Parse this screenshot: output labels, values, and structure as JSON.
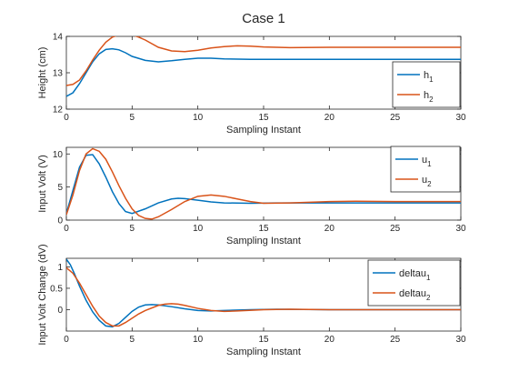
{
  "figure_title": "Case 1",
  "chart_data": [
    {
      "type": "line",
      "title": "",
      "xlabel": "Sampling Instant",
      "ylabel": "Height (cm)",
      "xlim": [
        0,
        30
      ],
      "ylim": [
        12,
        14
      ],
      "xticks": [
        0,
        5,
        10,
        15,
        20,
        25,
        30
      ],
      "yticks": [
        12,
        13,
        14
      ],
      "grid": false,
      "legend": "right",
      "series": [
        {
          "name_base": "h",
          "name_sub": "1",
          "color": "#0072BD",
          "x": [
            0,
            0.5,
            1,
            1.5,
            2,
            2.5,
            3,
            3.5,
            4,
            4.5,
            5,
            6,
            7,
            8,
            9,
            10,
            11,
            12,
            14,
            16,
            20,
            25,
            30
          ],
          "y": [
            12.35,
            12.45,
            12.7,
            13.0,
            13.3,
            13.52,
            13.64,
            13.66,
            13.63,
            13.55,
            13.45,
            13.34,
            13.3,
            13.33,
            13.37,
            13.4,
            13.4,
            13.38,
            13.37,
            13.37,
            13.37,
            13.37,
            13.37
          ]
        },
        {
          "name_base": "h",
          "name_sub": "2",
          "color": "#D95319",
          "x": [
            0,
            0.5,
            1,
            1.5,
            2,
            2.5,
            3,
            3.5,
            4,
            4.5,
            5,
            5.5,
            6,
            7,
            8,
            9,
            10,
            11,
            12,
            13,
            14,
            15,
            17,
            20,
            25,
            30
          ],
          "y": [
            12.65,
            12.68,
            12.8,
            13.05,
            13.35,
            13.62,
            13.84,
            13.98,
            14.04,
            14.06,
            14.04,
            13.98,
            13.9,
            13.7,
            13.6,
            13.58,
            13.62,
            13.68,
            13.72,
            13.74,
            13.73,
            13.71,
            13.69,
            13.7,
            13.7,
            13.7
          ]
        }
      ]
    },
    {
      "type": "line",
      "title": "",
      "xlabel": "Sampling Instant",
      "ylabel": "Input Volt (V)",
      "xlim": [
        0,
        30
      ],
      "ylim": [
        0,
        11
      ],
      "xticks": [
        0,
        5,
        10,
        15,
        20,
        25,
        30
      ],
      "yticks": [
        0,
        5,
        10
      ],
      "grid": false,
      "legend": "top-right",
      "series": [
        {
          "name_base": "u",
          "name_sub": "1",
          "color": "#0072BD",
          "x": [
            0,
            0.5,
            1,
            1.5,
            2,
            2.5,
            3,
            3.5,
            4,
            4.5,
            5,
            6,
            7,
            8,
            8.5,
            9,
            10,
            11,
            12,
            14,
            16,
            20,
            25,
            30
          ],
          "y": [
            1.0,
            4.5,
            8.0,
            9.8,
            9.9,
            8.5,
            6.5,
            4.3,
            2.5,
            1.3,
            1.0,
            1.7,
            2.6,
            3.2,
            3.3,
            3.25,
            3.0,
            2.75,
            2.6,
            2.55,
            2.6,
            2.6,
            2.6,
            2.6
          ]
        },
        {
          "name_base": "u",
          "name_sub": "2",
          "color": "#D95319",
          "x": [
            0,
            0.5,
            1,
            1.5,
            2,
            2.5,
            3,
            3.5,
            4,
            4.5,
            5,
            5.5,
            6,
            6.5,
            7,
            8,
            9,
            10,
            11,
            12,
            13,
            14,
            15,
            17,
            20,
            22,
            25,
            30
          ],
          "y": [
            0.8,
            3.8,
            7.5,
            10.0,
            10.8,
            10.4,
            9.2,
            7.3,
            5.2,
            3.3,
            1.7,
            0.7,
            0.25,
            0.15,
            0.5,
            1.6,
            2.8,
            3.6,
            3.8,
            3.6,
            3.2,
            2.8,
            2.55,
            2.6,
            2.8,
            2.85,
            2.8,
            2.8
          ]
        }
      ]
    },
    {
      "type": "line",
      "title": "",
      "xlabel": "Sampling Instant",
      "ylabel": "Input Volt Change (dV)",
      "xlim": [
        0,
        30
      ],
      "ylim": [
        -0.5,
        1.2
      ],
      "xticks": [
        0,
        5,
        10,
        15,
        20,
        25,
        30
      ],
      "yticks": [
        0,
        0.5,
        1
      ],
      "grid": false,
      "legend": "top-right",
      "series": [
        {
          "name_base": "deltau",
          "name_sub": "1",
          "color": "#0072BD",
          "x": [
            0,
            0.3,
            0.6,
            1,
            1.5,
            2,
            2.5,
            3,
            3.5,
            4,
            4.5,
            5,
            5.5,
            6,
            6.5,
            7,
            8,
            9,
            10,
            11,
            12,
            14,
            16,
            20,
            25,
            30
          ],
          "y": [
            1.18,
            1.05,
            0.85,
            0.55,
            0.22,
            -0.05,
            -0.25,
            -0.38,
            -0.4,
            -0.32,
            -0.18,
            -0.04,
            0.06,
            0.11,
            0.12,
            0.11,
            0.07,
            0.02,
            -0.02,
            -0.03,
            -0.02,
            0.0,
            0.01,
            0.0,
            0.0,
            0.0
          ]
        },
        {
          "name_base": "deltau",
          "name_sub": "2",
          "color": "#D95319",
          "x": [
            0,
            0.5,
            1,
            1.5,
            2,
            2.5,
            3,
            3.5,
            4,
            4.5,
            5,
            5.5,
            6,
            7,
            7.5,
            8,
            8.5,
            9,
            10,
            11,
            12,
            13,
            15,
            17,
            20,
            25,
            30
          ],
          "y": [
            0.98,
            0.85,
            0.62,
            0.35,
            0.08,
            -0.15,
            -0.3,
            -0.38,
            -0.38,
            -0.3,
            -0.2,
            -0.1,
            -0.02,
            0.1,
            0.13,
            0.14,
            0.13,
            0.1,
            0.03,
            -0.02,
            -0.04,
            -0.03,
            0.0,
            0.01,
            0.0,
            0.0,
            0.0
          ]
        }
      ]
    }
  ]
}
